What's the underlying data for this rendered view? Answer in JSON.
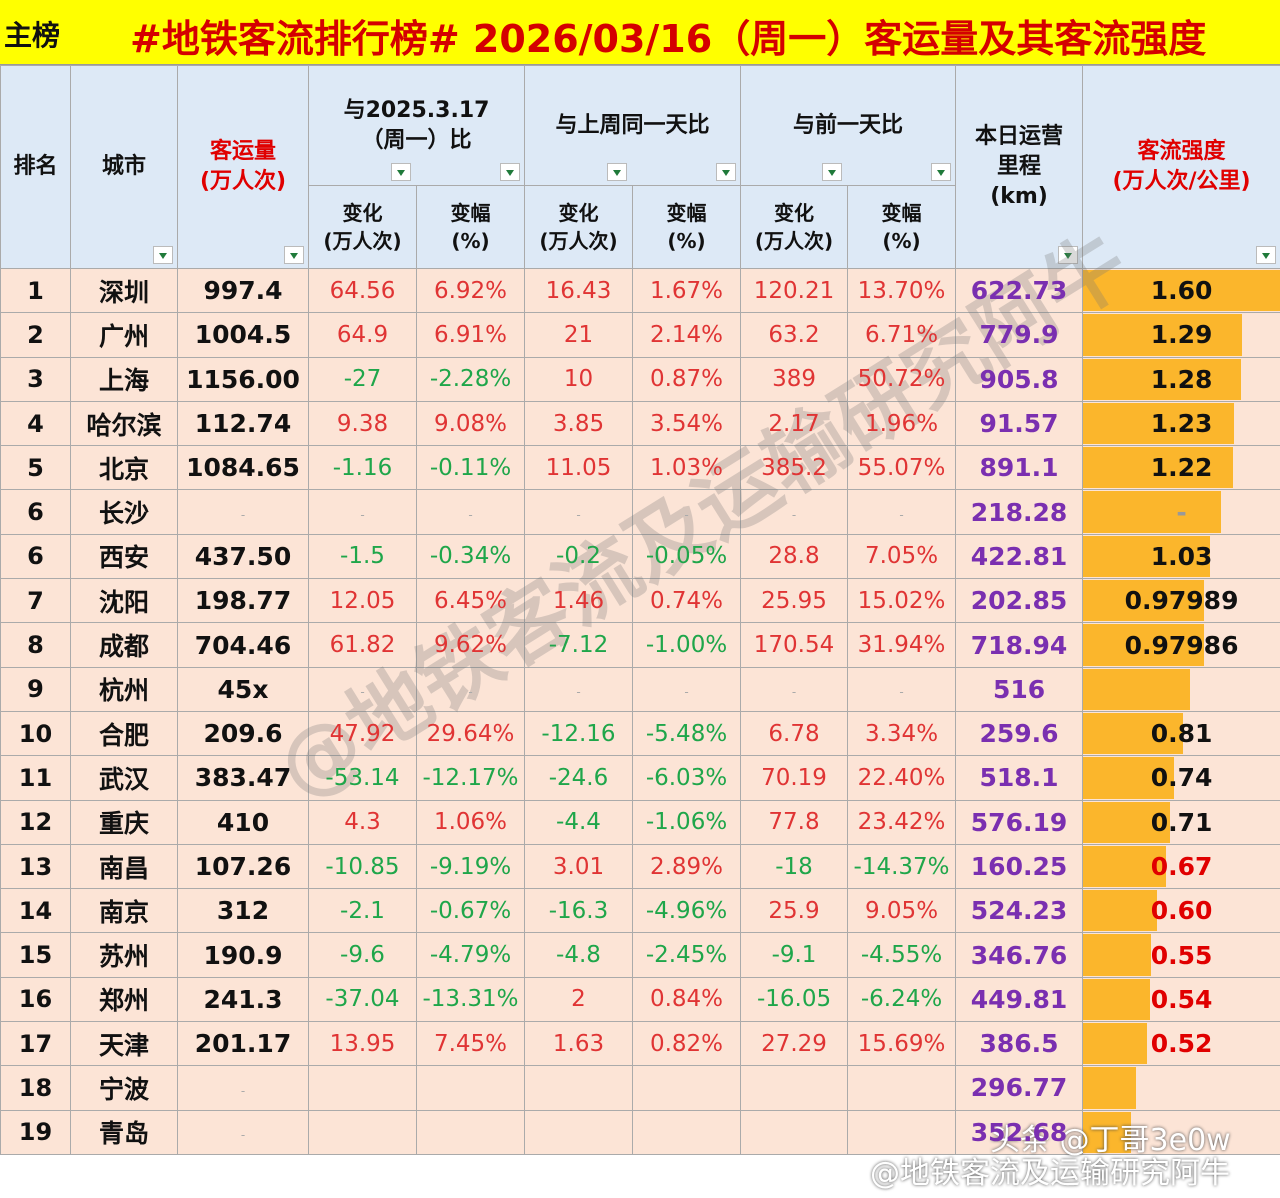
{
  "header": {
    "badge": "主榜",
    "title": "#地铁客流排行榜# 2026/03/16（周一）客运量及其客流强度"
  },
  "columns": {
    "rank": "排名",
    "city": "城市",
    "volume": [
      "客运量",
      "(万人次)"
    ],
    "yoy": "与2025.3.17（周一）比",
    "wow": "与上周同一天比",
    "dod": "与前一天比",
    "change": [
      "变化",
      "(万人次)"
    ],
    "pct": [
      "变幅",
      "(%)"
    ],
    "mileage": [
      "本日运营",
      "里程",
      "(km)"
    ],
    "intensity": [
      "客流强度",
      "(万人次/公里)"
    ]
  },
  "colors": {
    "rise": "#e03434",
    "fall": "#1fa64a",
    "mileage": "#7a2fb0",
    "bar": "#fbb62c",
    "row": "#fce4d6"
  },
  "rows": [
    [
      1,
      "深圳",
      "997.4",
      "64.56",
      "6.92%",
      "16.43",
      "1.67%",
      "120.21",
      "13.70%",
      "622.73",
      {
        "value": 1.6,
        "label": "1.60",
        "color": "#111111"
      }
    ],
    [
      2,
      "广州",
      "1004.5",
      "64.9",
      "6.91%",
      "21",
      "2.14%",
      "63.2",
      "6.71%",
      "779.9",
      {
        "value": 1.29,
        "label": "1.29",
        "color": "#111111"
      }
    ],
    [
      3,
      "上海",
      "1156.00",
      "-27",
      "-2.28%",
      "10",
      "0.87%",
      "389",
      "50.72%",
      "905.8",
      {
        "value": 1.28,
        "label": "1.28",
        "color": "#111111"
      }
    ],
    [
      4,
      "哈尔滨",
      "112.74",
      "9.38",
      "9.08%",
      "3.85",
      "3.54%",
      "2.17",
      "1.96%",
      "91.57",
      {
        "value": 1.23,
        "label": "1.23",
        "color": "#111111"
      }
    ],
    [
      5,
      "北京",
      "1084.65",
      "-1.16",
      "-0.11%",
      "11.05",
      "1.03%",
      "385.2",
      "55.07%",
      "891.1",
      {
        "value": 1.22,
        "label": "1.22",
        "color": "#111111"
      }
    ],
    [
      6,
      "长沙",
      "-",
      "-",
      "-",
      "-",
      "-",
      "-",
      "-",
      "218.28",
      {
        "value": 1.12,
        "label": "-",
        "color": "#999999"
      }
    ],
    [
      6,
      "西安",
      "437.50",
      "-1.5",
      "-0.34%",
      "-0.2",
      "-0.05%",
      "28.8",
      "7.05%",
      "422.81",
      {
        "value": 1.03,
        "label": "1.03",
        "color": "#111111"
      }
    ],
    [
      7,
      "沈阳",
      "198.77",
      "12.05",
      "6.45%",
      "1.46",
      "0.74%",
      "25.95",
      "15.02%",
      "202.85",
      {
        "value": 0.97989,
        "label": "0.97989",
        "color": "#111111"
      }
    ],
    [
      8,
      "成都",
      "704.46",
      "61.82",
      "9.62%",
      "-7.12",
      "-1.00%",
      "170.54",
      "31.94%",
      "718.94",
      {
        "value": 0.97986,
        "label": "0.97986",
        "color": "#111111"
      }
    ],
    [
      9,
      "杭州",
      "45x",
      "-",
      "-",
      "-",
      "-",
      "-",
      "-",
      "516",
      {
        "value": 0.87
      }
    ],
    [
      10,
      "合肥",
      "209.6",
      "47.92",
      "29.64%",
      "-12.16",
      "-5.48%",
      "6.78",
      "3.34%",
      "259.6",
      {
        "value": 0.81,
        "label": "0.81",
        "color": "#111111"
      }
    ],
    [
      11,
      "武汉",
      "383.47",
      "-53.14",
      "-12.17%",
      "-24.6",
      "-6.03%",
      "70.19",
      "22.40%",
      "518.1",
      {
        "value": 0.74,
        "label": "0.74",
        "color": "#111111"
      }
    ],
    [
      12,
      "重庆",
      "410",
      "4.3",
      "1.06%",
      "-4.4",
      "-1.06%",
      "77.8",
      "23.42%",
      "576.19",
      {
        "value": 0.71,
        "label": "0.71",
        "color": "#111111"
      }
    ],
    [
      13,
      "南昌",
      "107.26",
      "-10.85",
      "-9.19%",
      "3.01",
      "2.89%",
      "-18",
      "-14.37%",
      "160.25",
      {
        "value": 0.67,
        "label": "0.67",
        "color": "#e00000"
      }
    ],
    [
      14,
      "南京",
      "312",
      "-2.1",
      "-0.67%",
      "-16.3",
      "-4.96%",
      "25.9",
      "9.05%",
      "524.23",
      {
        "value": 0.6,
        "label": "0.60",
        "color": "#e00000"
      }
    ],
    [
      15,
      "苏州",
      "190.9",
      "-9.6",
      "-4.79%",
      "-4.8",
      "-2.45%",
      "-9.1",
      "-4.55%",
      "346.76",
      {
        "value": 0.55,
        "label": "0.55",
        "color": "#e00000"
      }
    ],
    [
      16,
      "郑州",
      "241.3",
      "-37.04",
      "-13.31%",
      "2",
      "0.84%",
      "-16.05",
      "-6.24%",
      "449.81",
      {
        "value": 0.54,
        "label": "0.54",
        "color": "#e00000"
      }
    ],
    [
      17,
      "天津",
      "201.17",
      "13.95",
      "7.45%",
      "1.63",
      "0.82%",
      "27.29",
      "15.69%",
      "386.5",
      {
        "value": 0.52,
        "label": "0.52",
        "color": "#e00000"
      }
    ],
    [
      18,
      "宁波",
      "-",
      null,
      null,
      null,
      null,
      null,
      null,
      "296.77",
      {
        "value": 0.43
      }
    ],
    [
      19,
      "青岛",
      "-",
      null,
      null,
      null,
      null,
      null,
      null,
      "352.68",
      {
        "value": 0.39
      }
    ]
  ],
  "watermark": {
    "diagonal": "@地铁客流及运输研究阿牛",
    "credit": "头条 @丁哥3e0w",
    "handle": "@地铁客流及运输研究阿牛"
  }
}
